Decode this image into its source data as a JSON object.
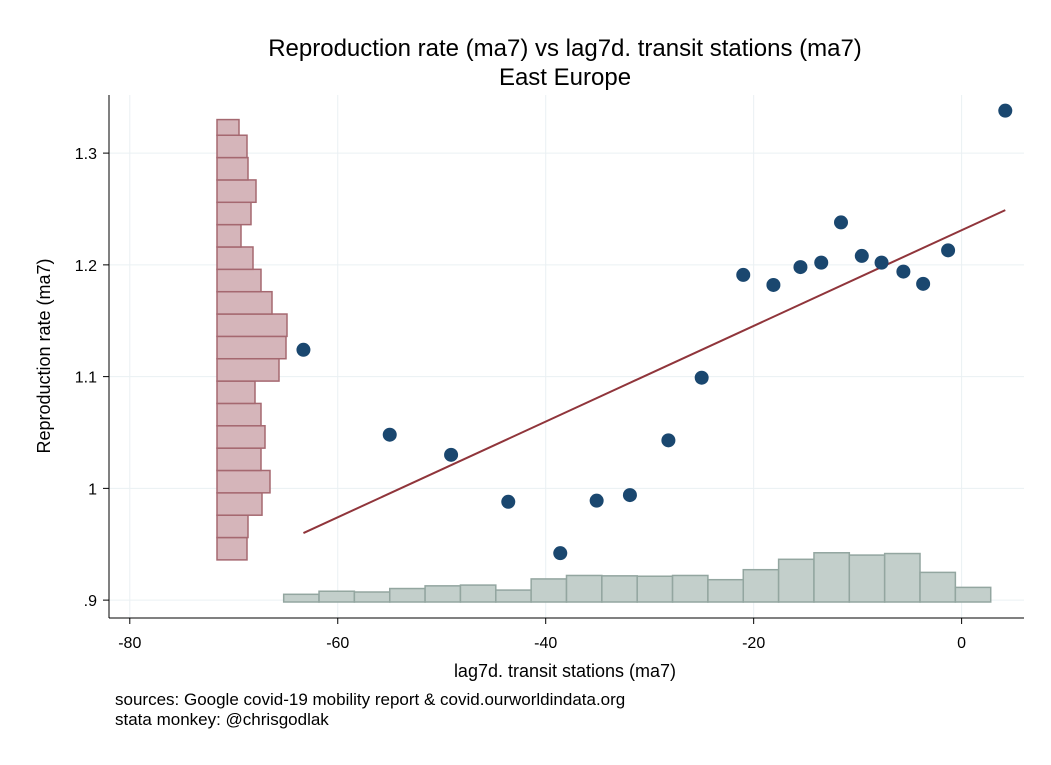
{
  "chart_data": {
    "type": "scatter",
    "title": "Reproduction rate (ma7) vs lag7d. transit stations (ma7)",
    "subtitle": "East Europe",
    "xlabel": "lag7d. transit stations (ma7)",
    "ylabel": "Reproduction rate (ma7)",
    "xlim": [
      -82,
      6
    ],
    "ylim": [
      0.884,
      1.352
    ],
    "x_ticks": [
      -80,
      -60,
      -40,
      -20,
      0
    ],
    "x_tick_labels": [
      "-80",
      "-60",
      "-40",
      "-20",
      "0"
    ],
    "y_ticks": [
      0.9,
      1.0,
      1.1,
      1.2,
      1.3
    ],
    "y_tick_labels": [
      ".9",
      "1",
      "1.1",
      "1.2",
      "1.3"
    ],
    "grid": true,
    "points": [
      {
        "x": -63.3,
        "y": 1.124
      },
      {
        "x": -55.0,
        "y": 1.048
      },
      {
        "x": -49.1,
        "y": 1.03
      },
      {
        "x": -43.6,
        "y": 0.988
      },
      {
        "x": -38.6,
        "y": 0.942
      },
      {
        "x": -35.1,
        "y": 0.989
      },
      {
        "x": -31.9,
        "y": 0.994
      },
      {
        "x": -28.2,
        "y": 1.043
      },
      {
        "x": -25.0,
        "y": 1.099
      },
      {
        "x": -21.0,
        "y": 1.191
      },
      {
        "x": -18.1,
        "y": 1.182
      },
      {
        "x": -15.5,
        "y": 1.198
      },
      {
        "x": -13.5,
        "y": 1.202
      },
      {
        "x": -11.6,
        "y": 1.238
      },
      {
        "x": -9.6,
        "y": 1.208
      },
      {
        "x": -7.7,
        "y": 1.202
      },
      {
        "x": -5.6,
        "y": 1.194
      },
      {
        "x": -3.7,
        "y": 1.183
      },
      {
        "x": -1.3,
        "y": 1.213
      },
      {
        "x": 4.2,
        "y": 1.338
      }
    ],
    "fit_line": {
      "x": [
        -63.3,
        4.2
      ],
      "y": [
        0.96,
        1.249
      ]
    },
    "x_histogram": {
      "bin_edges": [
        -65.2,
        -61.8,
        -58.4,
        -55.0,
        -51.6,
        -48.2,
        -44.8,
        -41.4,
        -38.0,
        -34.6,
        -31.2,
        -27.8,
        -24.4,
        -21.0,
        -17.6,
        -14.2,
        -10.8,
        -7.4,
        -4.0,
        -0.6,
        2.8
      ],
      "heights": [
        0.2,
        0.28,
        0.26,
        0.35,
        0.42,
        0.44,
        0.31,
        0.6,
        0.69,
        0.68,
        0.67,
        0.69,
        0.58,
        0.84,
        1.11,
        1.28,
        1.22,
        1.26,
        0.77,
        0.38
      ]
    },
    "y_histogram": {
      "bin_edges": [
        0.936,
        0.956,
        0.976,
        0.996,
        1.016,
        1.036,
        1.056,
        1.076,
        1.096,
        1.116,
        1.136,
        1.156,
        1.176,
        1.196,
        1.216,
        1.236,
        1.256,
        1.276,
        1.296,
        1.316,
        1.33
      ],
      "heights": [
        0.3,
        0.31,
        0.45,
        0.53,
        0.44,
        0.48,
        0.44,
        0.38,
        0.62,
        0.69,
        0.7,
        0.55,
        0.44,
        0.36,
        0.24,
        0.34,
        0.39,
        0.31,
        0.3,
        0.22
      ]
    },
    "colors": {
      "points": "#1a476f",
      "fit_line": "#90353b",
      "y_hist_fill": "#d5b5ba",
      "y_hist_stroke": "#a56870",
      "x_hist_fill": "#c3cfcb",
      "x_hist_stroke": "#93a6a0",
      "grid": "#eaf0f3"
    }
  },
  "notes": {
    "sources": "sources: Google covid-19 mobility report & covid.ourworldindata.org",
    "author": "stata monkey: @chrisgodlak"
  }
}
